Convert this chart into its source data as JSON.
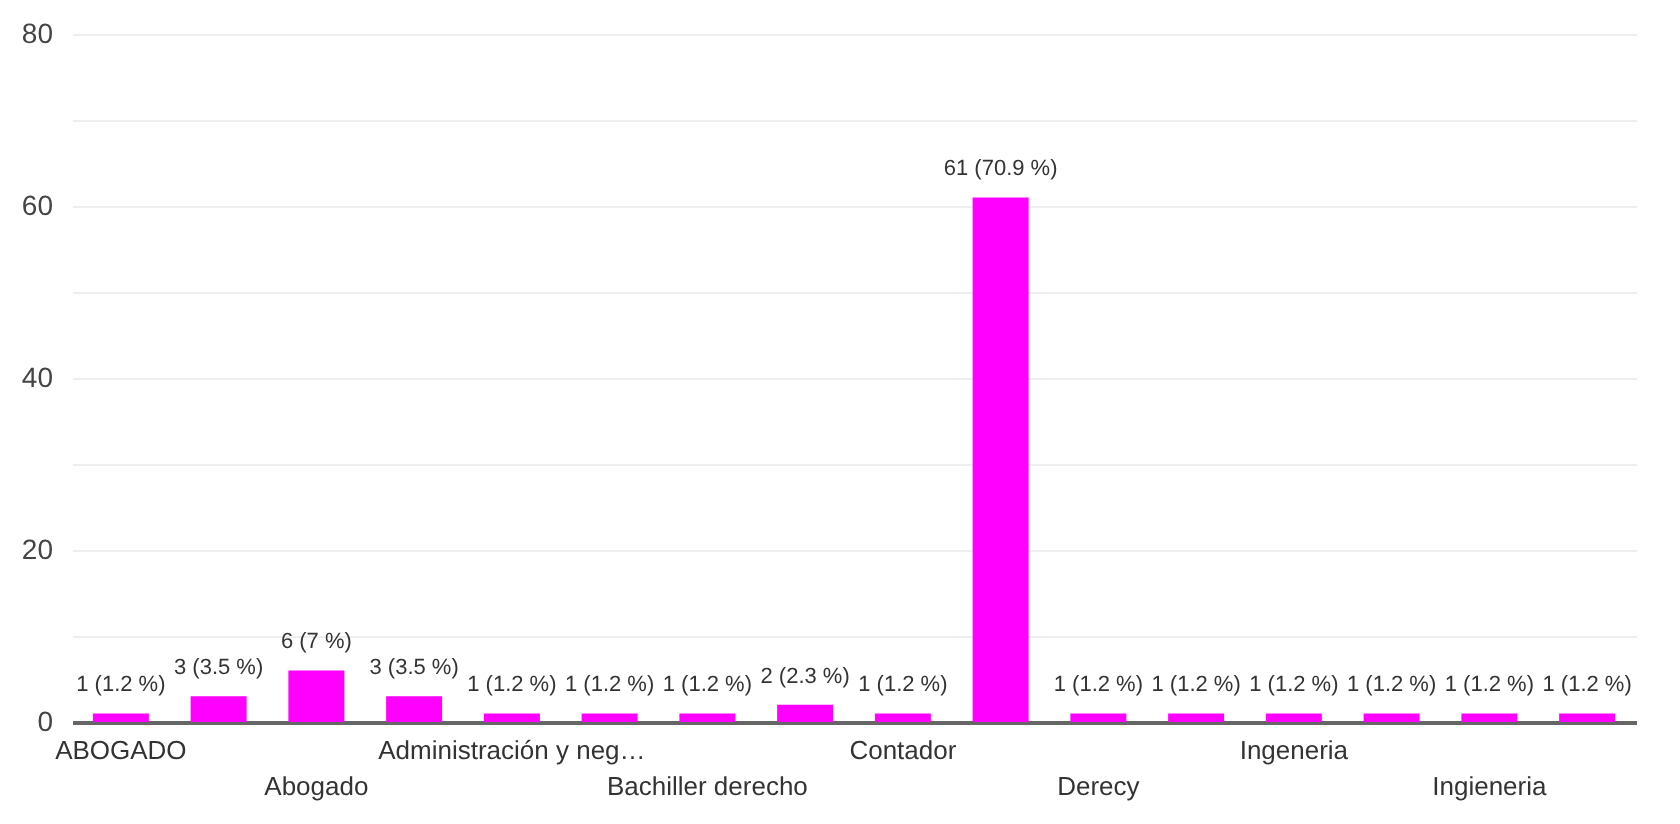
{
  "chart_data": {
    "type": "bar",
    "categories": [
      "ABOGADO",
      null,
      "Abogado",
      null,
      "Administración y neg…",
      null,
      "Bachiller derecho",
      null,
      "Contador",
      null,
      "Derecy",
      null,
      "Ingeneria",
      null,
      "Ingieneria",
      null
    ],
    "values": [
      1,
      3,
      6,
      3,
      1,
      1,
      1,
      2,
      1,
      61,
      1,
      1,
      1,
      1,
      1,
      1
    ],
    "value_labels": [
      "1 (1.2 %)",
      "3 (3.5 %)",
      "6 (7 %)",
      "3 (3.5 %)",
      "1 (1.2 %)",
      "1 (1.2 %)",
      "1 (1.2 %)",
      "2 (2.3 %)",
      "1 (1.2 %)",
      "61 (70.9 %)",
      "1 (1.2 %)",
      "1 (1.2 %)",
      "1 (1.2 %)",
      "1 (1.2 %)",
      "1 (1.2 %)",
      "1 (1.2 %)"
    ],
    "color": "#ff00ff",
    "ylim": [
      0,
      80
    ],
    "yticks": [
      0,
      {
        "value": 10,
        "label": null
      },
      20,
      {
        "value": 30,
        "label": null
      },
      40,
      {
        "value": 50,
        "label": null
      },
      60,
      {
        "value": 70,
        "label": null
      },
      80
    ],
    "grid": "y"
  }
}
